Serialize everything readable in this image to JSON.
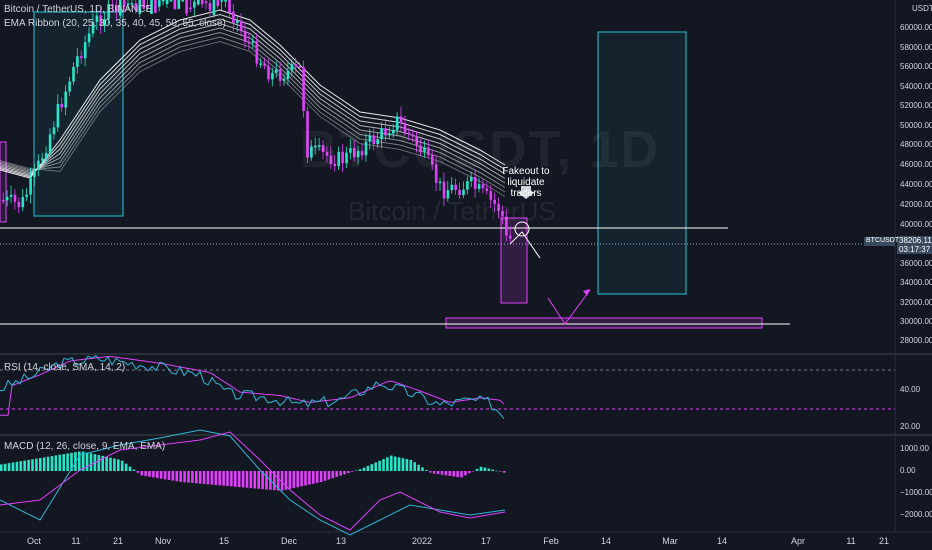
{
  "header": {
    "symbol_title": "Bitcoin / TetherUS, 1D, BINANCE",
    "indicator_ema": "EMA Ribbon (20, 25, 30, 35, 40, 45, 50, 55, close)",
    "price_unit": "USDT"
  },
  "watermark": {
    "ticker": "BTCUSDT, 1D",
    "name": "Bitcoin / TetherUS"
  },
  "annotation": {
    "line1": "Fakeout to",
    "line2": "liquidate traders"
  },
  "price_tag": {
    "symbol": "BTCUSDT",
    "price": "38206.11",
    "countdown": "03:17:37"
  },
  "rsi": {
    "label": "RSI (14, close, SMA, 14, 2)",
    "ticks": [
      "40.00",
      "20.00"
    ]
  },
  "macd": {
    "label": "MACD (12, 26, close, 9, EMA, EMA)",
    "ticks": [
      "1000.00",
      "0.00",
      "−1000.00",
      "−2000.00"
    ]
  },
  "price_axis": {
    "ticks": [
      "60000.00",
      "58000.00",
      "56000.00",
      "54000.00",
      "52000.00",
      "50000.00",
      "48000.00",
      "46000.00",
      "44000.00",
      "42000.00",
      "40000.00",
      "36000.00",
      "34000.00",
      "32000.00",
      "30000.00",
      "28000.00"
    ]
  },
  "time_axis": {
    "ticks": [
      "Oct",
      "11",
      "21",
      "Nov",
      "15",
      "Dec",
      "13",
      "2022",
      "17",
      "Feb",
      "14",
      "Mar",
      "14",
      "Apr",
      "11",
      "21"
    ]
  },
  "colors": {
    "background": "#131722",
    "bull": "#26e5c8",
    "bear": "#e040fb",
    "ribbon": "#ffffff",
    "rsi_line": "#2bb8d8",
    "rsi_ma": "#e040fb",
    "box_cyan": "#26c6da",
    "box_pink": "#e040fb"
  },
  "chart_data": {
    "type": "candlestick",
    "interval": "1D",
    "ylim": [
      27000,
      61000
    ],
    "support_levels": [
      39700,
      29800
    ],
    "price_path": [
      {
        "x": "Sep 27",
        "y": 42500
      },
      {
        "x": "Oct 1",
        "y": 47000
      },
      {
        "x": "Oct 6",
        "y": 55000
      },
      {
        "x": "Oct 11",
        "y": 57500
      },
      {
        "x": "Oct 21",
        "y": 63000
      },
      {
        "x": "Nov 1",
        "y": 61500
      },
      {
        "x": "Nov 10",
        "y": 65000
      },
      {
        "x": "Nov 15",
        "y": 60500
      },
      {
        "x": "Nov 22",
        "y": 57000
      },
      {
        "x": "Dec 1",
        "y": 57000
      },
      {
        "x": "Dec 4",
        "y": 49000
      },
      {
        "x": "Dec 13",
        "y": 47000
      },
      {
        "x": "Dec 27",
        "y": 50500
      },
      {
        "x": "Jan 1",
        "y": 47500
      },
      {
        "x": "Jan 10",
        "y": 42000
      },
      {
        "x": "Jan 17",
        "y": 42500
      },
      {
        "x": "Jan 21",
        "y": 36500
      },
      {
        "x": "Jan 24",
        "y": 38200
      }
    ],
    "projection": [
      {
        "x": "Jan 24",
        "y": 38200
      },
      {
        "x": "Jan 26",
        "y": 37200
      },
      {
        "x": "Feb 1",
        "y": 30000
      },
      {
        "x": "Feb 7",
        "y": 33700
      }
    ],
    "rsi_series": [
      {
        "x": "Oct 1",
        "y": 52
      },
      {
        "x": "Oct 11",
        "y": 70
      },
      {
        "x": "Oct 21",
        "y": 75
      },
      {
        "x": "Nov 10",
        "y": 72
      },
      {
        "x": "Nov 22",
        "y": 44
      },
      {
        "x": "Dec 4",
        "y": 40
      },
      {
        "x": "Dec 13",
        "y": 38
      },
      {
        "x": "Dec 27",
        "y": 55
      },
      {
        "x": "Jan 1",
        "y": 45
      },
      {
        "x": "Jan 10",
        "y": 32
      },
      {
        "x": "Jan 17",
        "y": 40
      },
      {
        "x": "Jan 24",
        "y": 25
      }
    ],
    "macd_histogram": [
      {
        "x": "Oct 11",
        "y": 900
      },
      {
        "x": "Oct 21",
        "y": 600
      },
      {
        "x": "Nov 1",
        "y": -300
      },
      {
        "x": "Nov 15",
        "y": -700
      },
      {
        "x": "Dec 4",
        "y": -900
      },
      {
        "x": "Dec 13",
        "y": -500
      },
      {
        "x": "Dec 27",
        "y": 600
      },
      {
        "x": "Jan 1",
        "y": 400
      },
      {
        "x": "Jan 10",
        "y": -300
      },
      {
        "x": "Jan 17",
        "y": 200
      },
      {
        "x": "Jan 24",
        "y": -100
      }
    ]
  }
}
